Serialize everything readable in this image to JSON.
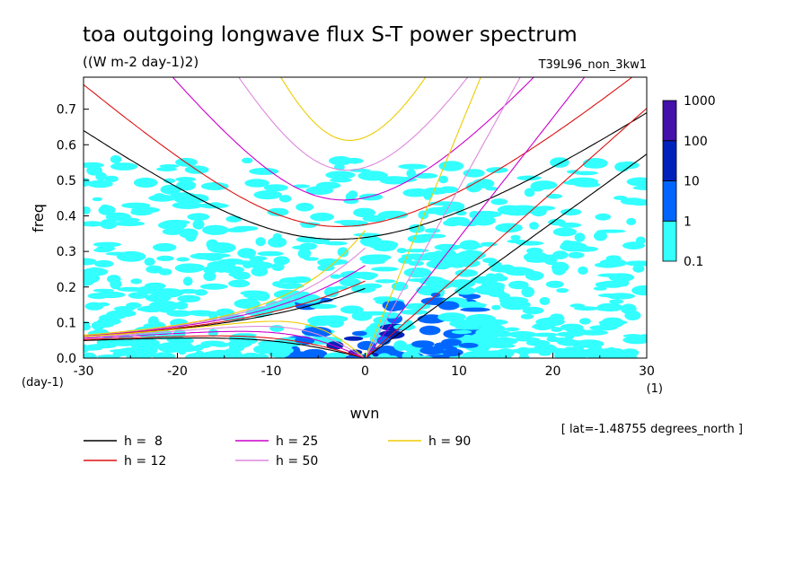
{
  "chart_data": {
    "type": "heatmap",
    "title": "toa outgoing longwave flux S-T power spectrum",
    "subtitle": "((W m-2 day-1)2)",
    "run_label": "T39L96_non_3kw1",
    "xlabel": "wvn",
    "ylabel": "freq",
    "x_unit": "(1)",
    "y_unit": "(day-1)",
    "xlim": [
      -30,
      30
    ],
    "ylim": [
      0,
      0.79
    ],
    "x_ticks": [
      "-30",
      "-20",
      "-10",
      "0",
      "10",
      "20",
      "30"
    ],
    "y_ticks": [
      "0.0",
      "0.1",
      "0.2",
      "0.3",
      "0.4",
      "0.5",
      "0.6",
      "0.7"
    ],
    "annotation": "[ lat=-1.48755 degrees_north ]",
    "colorbar": {
      "levels": [
        "0.1",
        "1",
        "10",
        "100",
        "1000"
      ],
      "colors": [
        "#33ffff",
        "#0066ff",
        "#0022bb",
        "#4411aa"
      ]
    },
    "legend": [
      {
        "label": "h =  8",
        "h": 8,
        "color": "#000000"
      },
      {
        "label": "h = 12",
        "h": 12,
        "color": "#dd1111"
      },
      {
        "label": "h = 25",
        "h": 25,
        "color": "#cc00cc"
      },
      {
        "label": "h = 50",
        "h": 50,
        "color": "#dd88dd"
      },
      {
        "label": "h = 90",
        "h": 90,
        "color": "#eecc00"
      }
    ]
  }
}
